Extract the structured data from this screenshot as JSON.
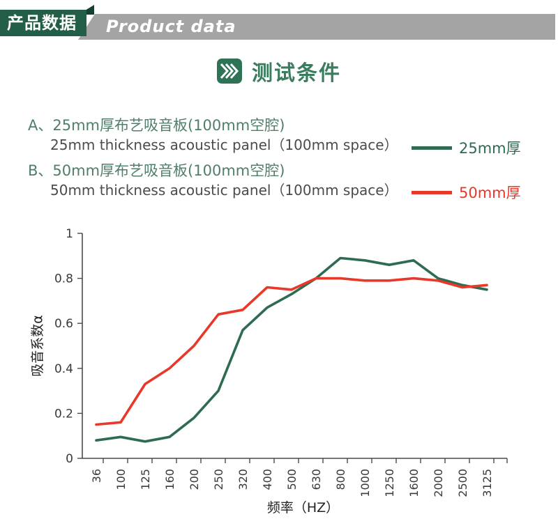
{
  "header": {
    "zh": "产品数据",
    "en": "Product data",
    "colors": {
      "green": "#235e47",
      "fold": "#16402e",
      "ribbon_gray": "#a4a4a4"
    }
  },
  "section": {
    "title": "测试条件",
    "icon_color": "#2f7356"
  },
  "conditions": [
    {
      "zh": "A、25mm厚布艺吸音板(100mm空腔)",
      "en": "25mm thickness acoustic panel（100mm space）"
    },
    {
      "zh": "B、50mm厚布艺吸音板(100mm空腔)",
      "en": "50mm thickness acoustic panel（100mm space）"
    }
  ],
  "legend": [
    {
      "label": "25mm厚",
      "color": "#2e6b50"
    },
    {
      "label": "50mm厚",
      "color": "#e8382a"
    }
  ],
  "chart_data": {
    "type": "line",
    "title": "",
    "categories": [
      "36",
      "100",
      "125",
      "160",
      "200",
      "250",
      "320",
      "400",
      "500",
      "630",
      "800",
      "1000",
      "1250",
      "1600",
      "2000",
      "2500",
      "3125"
    ],
    "series": [
      {
        "name": "25mm厚",
        "color": "#2e6b50",
        "values": [
          0.08,
          0.095,
          0.075,
          0.095,
          0.18,
          0.3,
          0.57,
          0.67,
          0.73,
          0.8,
          0.89,
          0.88,
          0.86,
          0.88,
          0.8,
          0.77,
          0.75
        ]
      },
      {
        "name": "50mm厚",
        "color": "#e8382a",
        "values": [
          0.15,
          0.16,
          0.33,
          0.4,
          0.5,
          0.64,
          0.66,
          0.76,
          0.75,
          0.8,
          0.8,
          0.79,
          0.79,
          0.8,
          0.79,
          0.76,
          0.77
        ]
      }
    ],
    "xlabel": "频率（HZ）",
    "ylabel": "吸音系数α",
    "ylim": [
      0,
      1
    ],
    "yticks": [
      0,
      0.2,
      0.4,
      0.6,
      0.8,
      1
    ],
    "grid": false,
    "legend_position": "outside-upper-right"
  }
}
